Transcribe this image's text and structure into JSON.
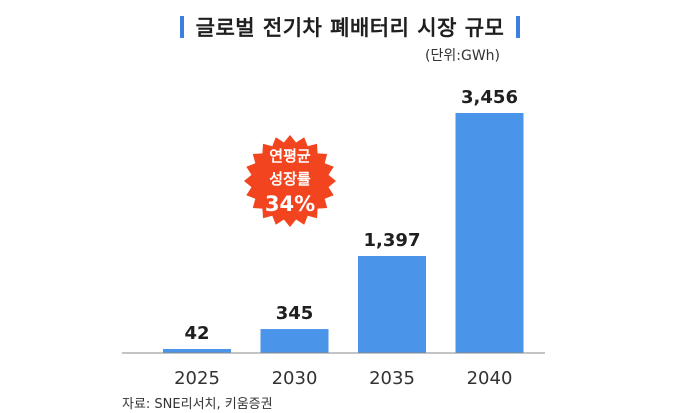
{
  "header": {
    "title": "글로벌 전기차 폐배터리 시장 규모",
    "unit": "(단위:GWh)"
  },
  "badge": {
    "line1": "연평균",
    "line2": "성장률",
    "line3": "34%",
    "color": "#f2441e"
  },
  "footer": {
    "source": "자료: SNE리서치, 키움증권"
  },
  "colors": {
    "bar": "#4a95ea",
    "accent": "#3d7fe0",
    "axis": "#8a8a8a"
  },
  "chart_data": {
    "type": "bar",
    "title": "글로벌 전기차 폐배터리 시장 규모",
    "unit": "(단위:GWh)",
    "categories": [
      "2025",
      "2030",
      "2035",
      "2040"
    ],
    "values": [
      42,
      345,
      1397,
      3456
    ],
    "value_labels": [
      "42",
      "345",
      "1,397",
      "3,456"
    ],
    "ylim": [
      0,
      3456
    ],
    "grid": false,
    "legend": "none"
  }
}
